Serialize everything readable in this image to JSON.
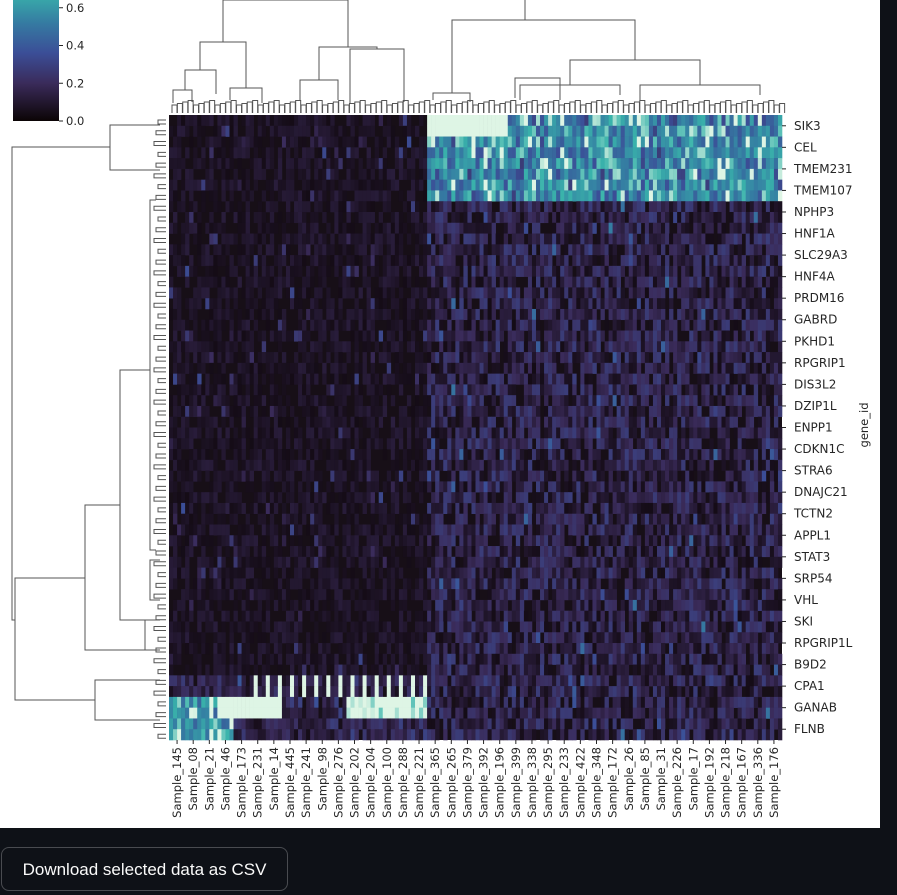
{
  "download_button": {
    "label": "Download selected data as CSV"
  },
  "chart_data": {
    "type": "heatmap",
    "title": "",
    "xlabel": "",
    "ylabel": "gene_id",
    "colormap": "mako",
    "colorbar": {
      "ticks": [
        "0.0",
        "0.2",
        "0.4",
        "0.6"
      ],
      "vmin": 0.0,
      "vmax": 0.8
    },
    "row_dendrogram": true,
    "col_dendrogram": true,
    "row_labels": [
      "SIK3",
      "CEL",
      "TMEM231",
      "TMEM107",
      "NPHP3",
      "HNF1A",
      "SLC29A3",
      "HNF4A",
      "PRDM16",
      "GABRD",
      "PKHD1",
      "RPGRIP1",
      "DIS3L2",
      "DZIP1L",
      "ENPP1",
      "CDKN1C",
      "STRA6",
      "DNAJC21",
      "TCTN2",
      "APPL1",
      "STAT3",
      "SRP54",
      "VHL",
      "SKI",
      "RPGRIP1L",
      "B9D2",
      "CPA1",
      "GANAB",
      "FLNB"
    ],
    "col_labels": [
      "Sample_145",
      "Sample_08",
      "Sample_21",
      "Sample_46",
      "Sample_173",
      "Sample_231",
      "Sample_14",
      "Sample_445",
      "Sample_241",
      "Sample_98",
      "Sample_276",
      "Sample_202",
      "Sample_204",
      "Sample_100",
      "Sample_288",
      "Sample_221",
      "Sample_365",
      "Sample_265",
      "Sample_379",
      "Sample_392",
      "Sample_196",
      "Sample_399",
      "Sample_338",
      "Sample_295",
      "Sample_233",
      "Sample_422",
      "Sample_348",
      "Sample_172",
      "Sample_26",
      "Sample_85",
      "Sample_31",
      "Sample_226",
      "Sample_17",
      "Sample_192",
      "Sample_218",
      "Sample_167",
      "Sample_336",
      "Sample_176"
    ]
  }
}
